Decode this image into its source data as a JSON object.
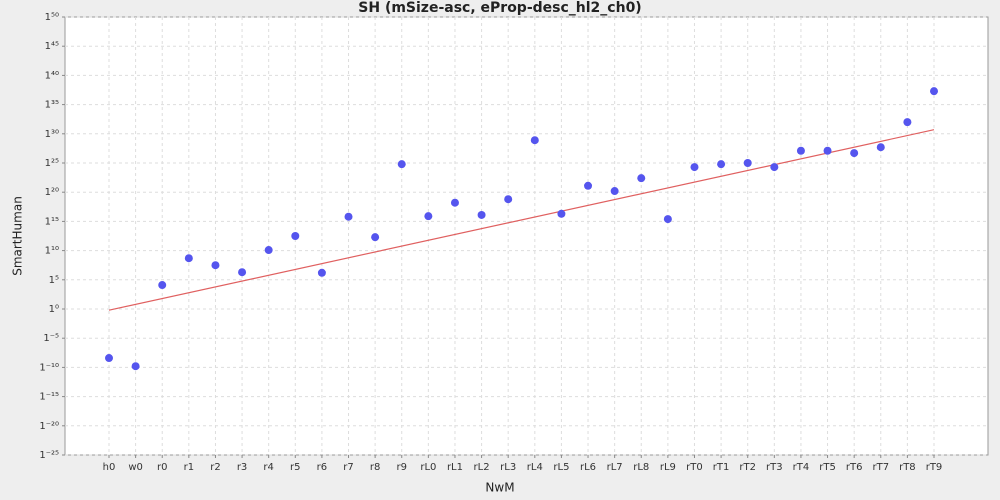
{
  "chart_data": {
    "type": "scatter",
    "title": "SH (mSize-asc, eProp-desc_hl2_ch0)",
    "x_label": "NwM",
    "y_label": "SmartHuman",
    "categories": [
      "h0",
      "w0",
      "r0",
      "r1",
      "r2",
      "r3",
      "r4",
      "r5",
      "r6",
      "r7",
      "r8",
      "r9",
      "rL0",
      "rL1",
      "rL2",
      "rL3",
      "rL4",
      "rL5",
      "rL6",
      "rL7",
      "rL8",
      "rL9",
      "rT0",
      "rT1",
      "rT2",
      "rT3",
      "rT4",
      "rT5",
      "rT6",
      "rT7",
      "rT8",
      "rT9"
    ],
    "values": [
      -8.4,
      -9.8,
      4.1,
      8.7,
      7.5,
      6.3,
      10.1,
      12.5,
      6.2,
      15.8,
      12.3,
      24.8,
      15.9,
      18.2,
      16.1,
      18.8,
      28.9,
      16.3,
      21.1,
      20.2,
      22.4,
      15.4,
      24.3,
      24.8,
      25.0,
      24.3,
      27.1,
      27.1,
      26.7,
      27.7,
      32.0,
      37.3
    ],
    "color": "#5555ee",
    "trend": {
      "values": [
        -0.2,
        30.7
      ],
      "color": "#e06060"
    },
    "ylim": [
      -25,
      50
    ],
    "yticks": [
      {
        "value": -25,
        "label": "1⁻²⁵"
      },
      {
        "value": -20,
        "label": "1⁻²⁰"
      },
      {
        "value": -15,
        "label": "1⁻¹⁵"
      },
      {
        "value": -10,
        "label": "1⁻¹⁰"
      },
      {
        "value": -5,
        "label": "1⁻⁵"
      },
      {
        "value": 0,
        "label": "1⁰"
      },
      {
        "value": 5,
        "label": "1⁵"
      },
      {
        "value": 10,
        "label": "1¹⁰"
      },
      {
        "value": 15,
        "label": "1¹⁵"
      },
      {
        "value": 20,
        "label": "1²⁰"
      },
      {
        "value": 25,
        "label": "1²⁵"
      },
      {
        "value": 30,
        "label": "1³⁰"
      },
      {
        "value": 35,
        "label": "1³⁵"
      },
      {
        "value": 40,
        "label": "1⁴⁰"
      },
      {
        "value": 45,
        "label": "1⁴⁵"
      },
      {
        "value": 50,
        "label": "1⁵⁰"
      }
    ],
    "grid": true
  }
}
